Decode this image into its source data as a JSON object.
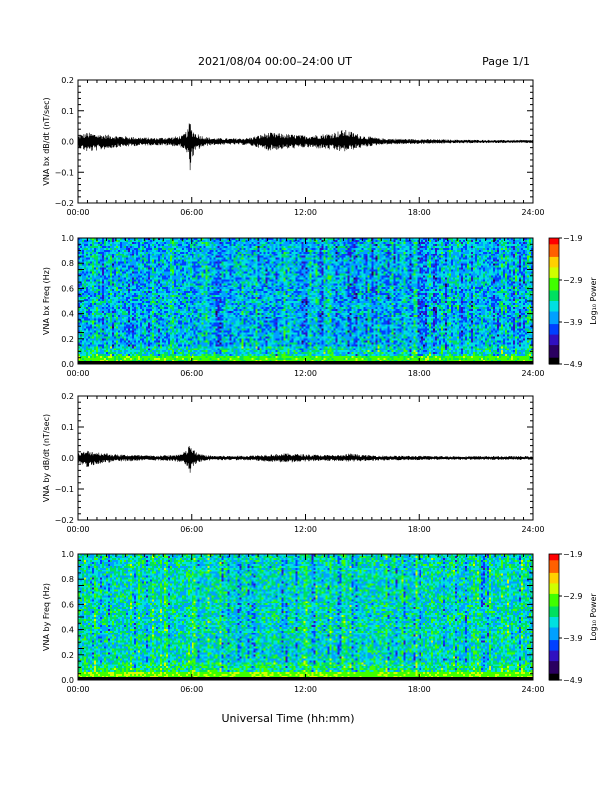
{
  "header": {
    "title": "2021/08/04  00:00–24:00 UT",
    "page": "Page 1/1"
  },
  "x_axis_title": "Universal Time (hh:mm)",
  "colorbar_label": "Log₁₀ Power",
  "colors": {
    "colormap": [
      "#000000",
      "#2a0060",
      "#3010c0",
      "#0040ff",
      "#00a0ff",
      "#00e0e0",
      "#00e060",
      "#40ff00",
      "#d0ff00",
      "#ffd000",
      "#ff6000",
      "#ff0000"
    ],
    "trace": "#000000"
  },
  "chart_data": [
    {
      "type": "line",
      "name": "bx-waveform",
      "ylabel": "VNA bx dB/dt (nT/sec)",
      "ylim": [
        -0.2,
        0.2
      ],
      "yticks": [
        "0.2",
        "0.1",
        "0.0",
        "−0.1",
        "−0.2"
      ],
      "yticks_values": [
        0.2,
        0.1,
        0.0,
        -0.1,
        -0.2
      ],
      "xlim": [
        0,
        24
      ],
      "xticks": [
        "00:00",
        "06:00",
        "12:00",
        "18:00",
        "24:00"
      ],
      "xticks_values": [
        0,
        6,
        12,
        18,
        24
      ],
      "envelope": {
        "hours": [
          0,
          0.5,
          1,
          2,
          3,
          4,
          5,
          5.5,
          5.8,
          5.9,
          6.0,
          6.2,
          6.5,
          7,
          8,
          9,
          9.5,
          10,
          11,
          12,
          13,
          13.5,
          14,
          14.3,
          15,
          16,
          18,
          20,
          22,
          24
        ],
        "upper": [
          0.02,
          0.03,
          0.025,
          0.02,
          0.015,
          0.012,
          0.015,
          0.02,
          0.04,
          0.075,
          0.045,
          0.03,
          0.02,
          0.012,
          0.01,
          0.012,
          0.02,
          0.03,
          0.025,
          0.02,
          0.025,
          0.03,
          0.04,
          0.035,
          0.02,
          0.01,
          0.008,
          0.006,
          0.005,
          0.005
        ],
        "lower": [
          -0.02,
          -0.035,
          -0.03,
          -0.02,
          -0.015,
          -0.012,
          -0.015,
          -0.02,
          -0.05,
          -0.1,
          -0.06,
          -0.035,
          -0.02,
          -0.012,
          -0.01,
          -0.012,
          -0.02,
          -0.03,
          -0.025,
          -0.02,
          -0.025,
          -0.03,
          -0.035,
          -0.03,
          -0.02,
          -0.01,
          -0.008,
          -0.006,
          -0.005,
          -0.005
        ]
      }
    },
    {
      "type": "heatmap",
      "name": "bx-spectrogram",
      "ylabel": "VNA bx Freq (Hz)",
      "ylim": [
        0.0,
        1.0
      ],
      "yticks": [
        "1.0",
        "0.8",
        "0.6",
        "0.4",
        "0.2",
        "0.0"
      ],
      "yticks_values": [
        1.0,
        0.8,
        0.6,
        0.4,
        0.2,
        0.0
      ],
      "xlim": [
        0,
        24
      ],
      "xticks": [
        "00:00",
        "06:00",
        "12:00",
        "18:00",
        "24:00"
      ],
      "xticks_values": [
        0,
        6,
        12,
        18,
        24
      ],
      "zlim": [
        -4.9,
        -1.9
      ],
      "colorbar_ticks": [
        "−1.9",
        "−2.9",
        "−3.9",
        "−4.9"
      ],
      "colorbar_ticks_values": [
        -1.9,
        -2.9,
        -3.9,
        -4.9
      ],
      "typical_level": -3.7,
      "low_freq_level": -3.1
    },
    {
      "type": "line",
      "name": "by-waveform",
      "ylabel": "VNA by dB/dt (nT/sec)",
      "ylim": [
        -0.2,
        0.2
      ],
      "yticks": [
        "0.2",
        "0.1",
        "0.0",
        "−0.1",
        "−0.2"
      ],
      "yticks_values": [
        0.2,
        0.1,
        0.0,
        -0.1,
        -0.2
      ],
      "xlim": [
        0,
        24
      ],
      "xticks": [
        "00:00",
        "06:00",
        "12:00",
        "18:00",
        "24:00"
      ],
      "xticks_values": [
        0,
        6,
        12,
        18,
        24
      ],
      "envelope": {
        "hours": [
          0,
          0.5,
          1,
          2,
          3,
          4,
          5,
          5.5,
          5.8,
          5.9,
          6.0,
          6.2,
          6.5,
          7,
          8,
          9,
          10,
          11,
          12,
          13,
          14,
          14.3,
          15,
          16,
          18,
          20,
          22,
          24
        ],
        "upper": [
          0.015,
          0.025,
          0.02,
          0.012,
          0.01,
          0.008,
          0.01,
          0.015,
          0.03,
          0.055,
          0.035,
          0.02,
          0.012,
          0.008,
          0.007,
          0.008,
          0.012,
          0.015,
          0.012,
          0.01,
          0.01,
          0.015,
          0.01,
          0.008,
          0.007,
          0.006,
          0.006,
          0.006
        ],
        "lower": [
          -0.015,
          -0.03,
          -0.02,
          -0.012,
          -0.01,
          -0.008,
          -0.01,
          -0.015,
          -0.03,
          -0.05,
          -0.035,
          -0.02,
          -0.012,
          -0.008,
          -0.007,
          -0.008,
          -0.012,
          -0.015,
          -0.012,
          -0.01,
          -0.01,
          -0.012,
          -0.01,
          -0.008,
          -0.007,
          -0.006,
          -0.006,
          -0.006
        ]
      }
    },
    {
      "type": "heatmap",
      "name": "by-spectrogram",
      "ylabel": "VNA by Freq (Hz)",
      "ylim": [
        0.0,
        1.0
      ],
      "yticks": [
        "1.0",
        "0.8",
        "0.6",
        "0.4",
        "0.2",
        "0.0"
      ],
      "yticks_values": [
        1.0,
        0.8,
        0.6,
        0.4,
        0.2,
        0.0
      ],
      "xlim": [
        0,
        24
      ],
      "xticks": [
        "00:00",
        "06:00",
        "12:00",
        "18:00",
        "24:00"
      ],
      "xticks_values": [
        0,
        6,
        12,
        18,
        24
      ],
      "zlim": [
        -4.9,
        -1.9
      ],
      "colorbar_ticks": [
        "−1.9",
        "−2.9",
        "−3.9",
        "−4.9"
      ],
      "colorbar_ticks_values": [
        -1.9,
        -2.9,
        -3.9,
        -4.9
      ],
      "typical_level": -3.5,
      "low_freq_level": -3.0
    }
  ]
}
